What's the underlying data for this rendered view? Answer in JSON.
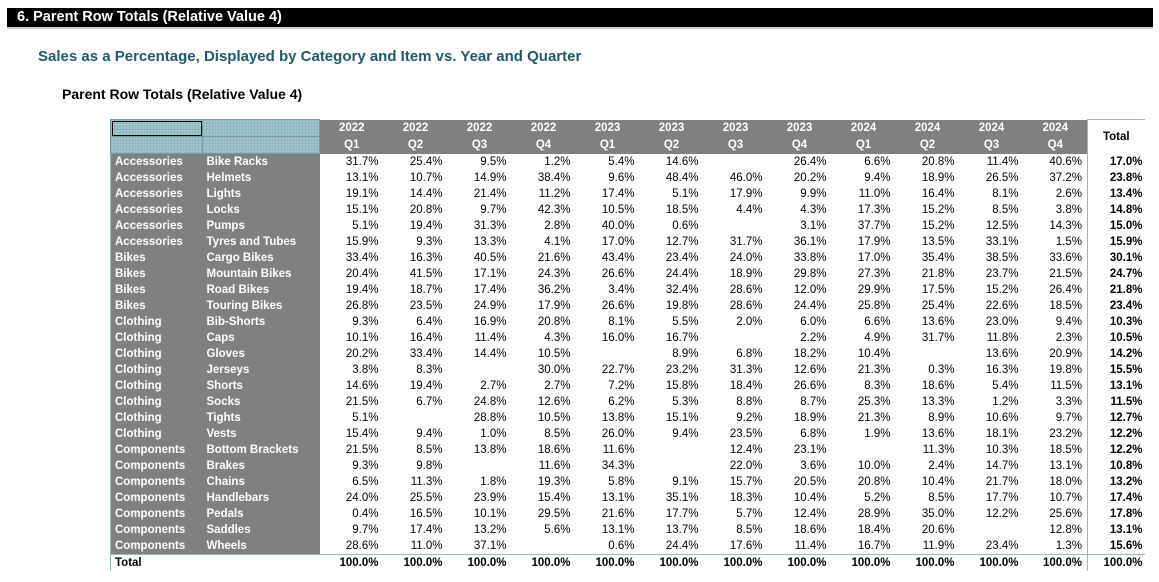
{
  "section_title": "6.  Parent Row Totals (Relative Value 4)",
  "subtitle": "Sales as a Percentage, Displayed by Category and Item vs. Year and Quarter",
  "report_title": "Parent Row Totals (Relative Value 4)",
  "table": {
    "years": [
      "2022",
      "2022",
      "2022",
      "2022",
      "2023",
      "2023",
      "2023",
      "2023",
      "2024",
      "2024",
      "2024",
      "2024"
    ],
    "quarters": [
      "Q1",
      "Q2",
      "Q3",
      "Q4",
      "Q1",
      "Q2",
      "Q3",
      "Q4",
      "Q1",
      "Q2",
      "Q3",
      "Q4"
    ],
    "total_header": "Total",
    "rows": [
      {
        "category": "Accessories",
        "item": "Bike Racks",
        "values": [
          "31.7%",
          "25.4%",
          "9.5%",
          "1.2%",
          "5.4%",
          "14.6%",
          "",
          "26.4%",
          "6.6%",
          "20.8%",
          "11.4%",
          "40.6%"
        ],
        "total": "17.0%"
      },
      {
        "category": "Accessories",
        "item": "Helmets",
        "values": [
          "13.1%",
          "10.7%",
          "14.9%",
          "38.4%",
          "9.6%",
          "48.4%",
          "46.0%",
          "20.2%",
          "9.4%",
          "18.9%",
          "26.5%",
          "37.2%"
        ],
        "total": "23.8%"
      },
      {
        "category": "Accessories",
        "item": "Lights",
        "values": [
          "19.1%",
          "14.4%",
          "21.4%",
          "11.2%",
          "17.4%",
          "5.1%",
          "17.9%",
          "9.9%",
          "11.0%",
          "16.4%",
          "8.1%",
          "2.6%"
        ],
        "total": "13.4%"
      },
      {
        "category": "Accessories",
        "item": "Locks",
        "values": [
          "15.1%",
          "20.8%",
          "9.7%",
          "42.3%",
          "10.5%",
          "18.5%",
          "4.4%",
          "4.3%",
          "17.3%",
          "15.2%",
          "8.5%",
          "3.8%"
        ],
        "total": "14.8%"
      },
      {
        "category": "Accessories",
        "item": "Pumps",
        "values": [
          "5.1%",
          "19.4%",
          "31.3%",
          "2.8%",
          "40.0%",
          "0.6%",
          "",
          "3.1%",
          "37.7%",
          "15.2%",
          "12.5%",
          "14.3%"
        ],
        "total": "15.0%"
      },
      {
        "category": "Accessories",
        "item": "Tyres and Tubes",
        "values": [
          "15.9%",
          "9.3%",
          "13.3%",
          "4.1%",
          "17.0%",
          "12.7%",
          "31.7%",
          "36.1%",
          "17.9%",
          "13.5%",
          "33.1%",
          "1.5%"
        ],
        "total": "15.9%"
      },
      {
        "category": "Bikes",
        "item": "Cargo Bikes",
        "values": [
          "33.4%",
          "16.3%",
          "40.5%",
          "21.6%",
          "43.4%",
          "23.4%",
          "24.0%",
          "33.8%",
          "17.0%",
          "35.4%",
          "38.5%",
          "33.6%"
        ],
        "total": "30.1%"
      },
      {
        "category": "Bikes",
        "item": "Mountain Bikes",
        "values": [
          "20.4%",
          "41.5%",
          "17.1%",
          "24.3%",
          "26.6%",
          "24.4%",
          "18.9%",
          "29.8%",
          "27.3%",
          "21.8%",
          "23.7%",
          "21.5%"
        ],
        "total": "24.7%"
      },
      {
        "category": "Bikes",
        "item": "Road Bikes",
        "values": [
          "19.4%",
          "18.7%",
          "17.4%",
          "36.2%",
          "3.4%",
          "32.4%",
          "28.6%",
          "12.0%",
          "29.9%",
          "17.5%",
          "15.2%",
          "26.4%"
        ],
        "total": "21.8%"
      },
      {
        "category": "Bikes",
        "item": "Touring Bikes",
        "values": [
          "26.8%",
          "23.5%",
          "24.9%",
          "17.9%",
          "26.6%",
          "19.8%",
          "28.6%",
          "24.4%",
          "25.8%",
          "25.4%",
          "22.6%",
          "18.5%"
        ],
        "total": "23.4%"
      },
      {
        "category": "Clothing",
        "item": "Bib-Shorts",
        "values": [
          "9.3%",
          "6.4%",
          "16.9%",
          "20.8%",
          "8.1%",
          "5.5%",
          "2.0%",
          "6.0%",
          "6.6%",
          "13.6%",
          "23.0%",
          "9.4%"
        ],
        "total": "10.3%"
      },
      {
        "category": "Clothing",
        "item": "Caps",
        "values": [
          "10.1%",
          "16.4%",
          "11.4%",
          "4.3%",
          "16.0%",
          "16.7%",
          "",
          "2.2%",
          "4.9%",
          "31.7%",
          "11.8%",
          "2.3%"
        ],
        "total": "10.5%"
      },
      {
        "category": "Clothing",
        "item": "Gloves",
        "values": [
          "20.2%",
          "33.4%",
          "14.4%",
          "10.5%",
          "",
          "8.9%",
          "6.8%",
          "18.2%",
          "10.4%",
          "",
          "13.6%",
          "20.9%"
        ],
        "total": "14.2%"
      },
      {
        "category": "Clothing",
        "item": "Jerseys",
        "values": [
          "3.8%",
          "8.3%",
          "",
          "30.0%",
          "22.7%",
          "23.2%",
          "31.3%",
          "12.6%",
          "21.3%",
          "0.3%",
          "16.3%",
          "19.8%"
        ],
        "total": "15.5%"
      },
      {
        "category": "Clothing",
        "item": "Shorts",
        "values": [
          "14.6%",
          "19.4%",
          "2.7%",
          "2.7%",
          "7.2%",
          "15.8%",
          "18.4%",
          "26.6%",
          "8.3%",
          "18.6%",
          "5.4%",
          "11.5%"
        ],
        "total": "13.1%"
      },
      {
        "category": "Clothing",
        "item": "Socks",
        "values": [
          "21.5%",
          "6.7%",
          "24.8%",
          "12.6%",
          "6.2%",
          "5.3%",
          "8.8%",
          "8.7%",
          "25.3%",
          "13.3%",
          "1.2%",
          "3.3%"
        ],
        "total": "11.5%"
      },
      {
        "category": "Clothing",
        "item": "Tights",
        "values": [
          "5.1%",
          "",
          "28.8%",
          "10.5%",
          "13.8%",
          "15.1%",
          "9.2%",
          "18.9%",
          "21.3%",
          "8.9%",
          "10.6%",
          "9.7%"
        ],
        "total": "12.7%"
      },
      {
        "category": "Clothing",
        "item": "Vests",
        "values": [
          "15.4%",
          "9.4%",
          "1.0%",
          "8.5%",
          "26.0%",
          "9.4%",
          "23.5%",
          "6.8%",
          "1.9%",
          "13.6%",
          "18.1%",
          "23.2%"
        ],
        "total": "12.2%"
      },
      {
        "category": "Components",
        "item": "Bottom Brackets",
        "values": [
          "21.5%",
          "8.5%",
          "13.8%",
          "18.6%",
          "11.6%",
          "",
          "12.4%",
          "23.1%",
          "",
          "11.3%",
          "10.3%",
          "18.5%"
        ],
        "total": "12.2%"
      },
      {
        "category": "Components",
        "item": "Brakes",
        "values": [
          "9.3%",
          "9.8%",
          "",
          "11.6%",
          "34.3%",
          "",
          "22.0%",
          "3.6%",
          "10.0%",
          "2.4%",
          "14.7%",
          "13.1%"
        ],
        "total": "10.8%"
      },
      {
        "category": "Components",
        "item": "Chains",
        "values": [
          "6.5%",
          "11.3%",
          "1.8%",
          "19.3%",
          "5.8%",
          "9.1%",
          "15.7%",
          "20.5%",
          "20.8%",
          "10.4%",
          "21.7%",
          "18.0%"
        ],
        "total": "13.2%"
      },
      {
        "category": "Components",
        "item": "Handlebars",
        "values": [
          "24.0%",
          "25.5%",
          "23.9%",
          "15.4%",
          "13.1%",
          "35.1%",
          "18.3%",
          "10.4%",
          "5.2%",
          "8.5%",
          "17.7%",
          "10.7%"
        ],
        "total": "17.4%"
      },
      {
        "category": "Components",
        "item": "Pedals",
        "values": [
          "0.4%",
          "16.5%",
          "10.1%",
          "29.5%",
          "21.6%",
          "17.7%",
          "5.7%",
          "12.4%",
          "28.9%",
          "35.0%",
          "12.2%",
          "25.6%"
        ],
        "total": "17.8%"
      },
      {
        "category": "Components",
        "item": "Saddles",
        "values": [
          "9.7%",
          "17.4%",
          "13.2%",
          "5.6%",
          "13.1%",
          "13.7%",
          "8.5%",
          "18.6%",
          "18.4%",
          "20.6%",
          "",
          "12.8%"
        ],
        "total": "13.1%"
      },
      {
        "category": "Components",
        "item": "Wheels",
        "values": [
          "28.6%",
          "11.0%",
          "37.1%",
          "",
          "0.6%",
          "24.4%",
          "17.6%",
          "11.4%",
          "16.7%",
          "11.9%",
          "23.4%",
          "1.3%"
        ],
        "total": "15.6%"
      }
    ],
    "total_row": {
      "label": "Total",
      "values": [
        "100.0%",
        "100.0%",
        "100.0%",
        "100.0%",
        "100.0%",
        "100.0%",
        "100.0%",
        "100.0%",
        "100.0%",
        "100.0%",
        "100.0%",
        "100.0%"
      ],
      "total": "100.0%"
    }
  }
}
